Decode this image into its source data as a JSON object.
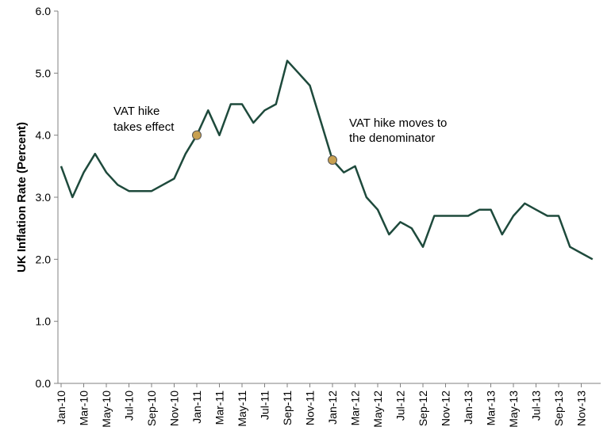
{
  "chart_data": {
    "type": "line",
    "title": "",
    "xlabel": "",
    "ylabel": "UK Inflation Rate (Percent)",
    "ylim": [
      0,
      6
    ],
    "yticks": [
      "0.0",
      "1.0",
      "2.0",
      "3.0",
      "4.0",
      "5.0",
      "6.0"
    ],
    "grid": false,
    "x": [
      "Jan-10",
      "Feb-10",
      "Mar-10",
      "Apr-10",
      "May-10",
      "Jun-10",
      "Jul-10",
      "Aug-10",
      "Sep-10",
      "Oct-10",
      "Nov-10",
      "Dec-10",
      "Jan-11",
      "Feb-11",
      "Mar-11",
      "Apr-11",
      "May-11",
      "Jun-11",
      "Jul-11",
      "Aug-11",
      "Sep-11",
      "Oct-11",
      "Nov-11",
      "Dec-11",
      "Jan-12",
      "Feb-12",
      "Mar-12",
      "Apr-12",
      "May-12",
      "Jun-12",
      "Jul-12",
      "Aug-12",
      "Sep-12",
      "Oct-12",
      "Nov-12",
      "Dec-12",
      "Jan-13",
      "Feb-13",
      "Mar-13",
      "Apr-13",
      "May-13",
      "Jun-13",
      "Jul-13",
      "Aug-13",
      "Sep-13",
      "Oct-13",
      "Nov-13",
      "Dec-13"
    ],
    "xtick_labels": [
      "Jan-10",
      "Mar-10",
      "May-10",
      "Jul-10",
      "Sep-10",
      "Nov-10",
      "Jan-11",
      "Mar-11",
      "May-11",
      "Jul-11",
      "Sep-11",
      "Nov-11",
      "Jan-12",
      "Mar-12",
      "May-12",
      "Jul-12",
      "Sep-12",
      "Nov-12",
      "Jan-13",
      "Mar-13",
      "May-13",
      "Jul-13",
      "Sep-13",
      "Nov-13"
    ],
    "series": [
      {
        "values": [
          3.5,
          3.0,
          3.4,
          3.7,
          3.4,
          3.2,
          3.1,
          3.1,
          3.1,
          3.2,
          3.3,
          3.7,
          4.0,
          4.4,
          4.0,
          4.5,
          4.5,
          4.2,
          4.4,
          4.5,
          5.2,
          5.0,
          4.8,
          4.2,
          3.6,
          3.4,
          3.5,
          3.0,
          2.8,
          2.4,
          2.6,
          2.5,
          2.2,
          2.7,
          2.7,
          2.7,
          2.7,
          2.8,
          2.8,
          2.4,
          2.7,
          2.9,
          2.8,
          2.7,
          2.7,
          2.2,
          2.1,
          2.0
        ],
        "color": "#1e4a3c"
      }
    ],
    "markers": [
      {
        "x": "Jan-11",
        "y": 4.0,
        "color": "#c8a050"
      },
      {
        "x": "Jan-12",
        "y": 3.6,
        "color": "#c8a050"
      }
    ],
    "annotations": [
      {
        "lines": [
          "VAT hike",
          "takes effect"
        ]
      },
      {
        "lines": [
          "VAT hike moves to",
          "the denominator"
        ]
      }
    ]
  }
}
